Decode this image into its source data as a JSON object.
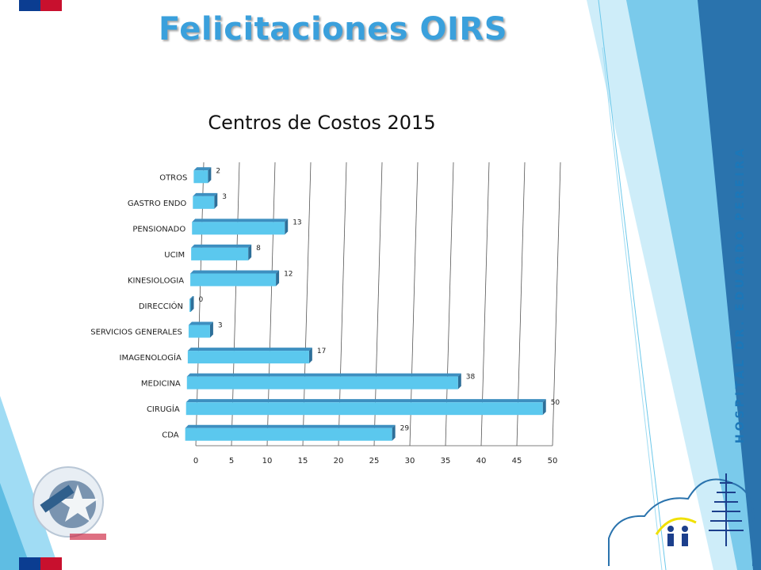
{
  "slide": {
    "title": "Felicitaciones OIRS",
    "side_text": "HOSPITAL DR. EDUARDO PEREIRA"
  },
  "colors": {
    "bar_front": "#5bc8ee",
    "bar_top": "#3d8fc0",
    "bar_side": "#2e6f99",
    "gridline": "#555555",
    "accent_light": "#8fd6f2",
    "accent_dark": "#1f5f8f",
    "title": "#3aa0dc"
  },
  "chart_data": {
    "type": "bar",
    "orientation": "horizontal",
    "title": "Centros de Costos 2015",
    "categories": [
      "OTROS",
      "GASTRO ENDO",
      "PENSIONADO",
      "UCIM",
      "KINESIOLOGIA",
      "DIRECCIÓN",
      "SERVICIOS GENERALES",
      "IMAGENOLOGÍA",
      "MEDICINA",
      "CIRUGÍA",
      "CDA"
    ],
    "values": [
      2,
      3,
      13,
      8,
      12,
      0,
      3,
      17,
      38,
      50,
      29
    ],
    "xlim": [
      0,
      50
    ],
    "xticks": [
      0,
      5,
      10,
      15,
      20,
      25,
      30,
      35,
      40,
      45,
      50
    ],
    "grid": true,
    "data_labels": true,
    "legend": "none"
  }
}
